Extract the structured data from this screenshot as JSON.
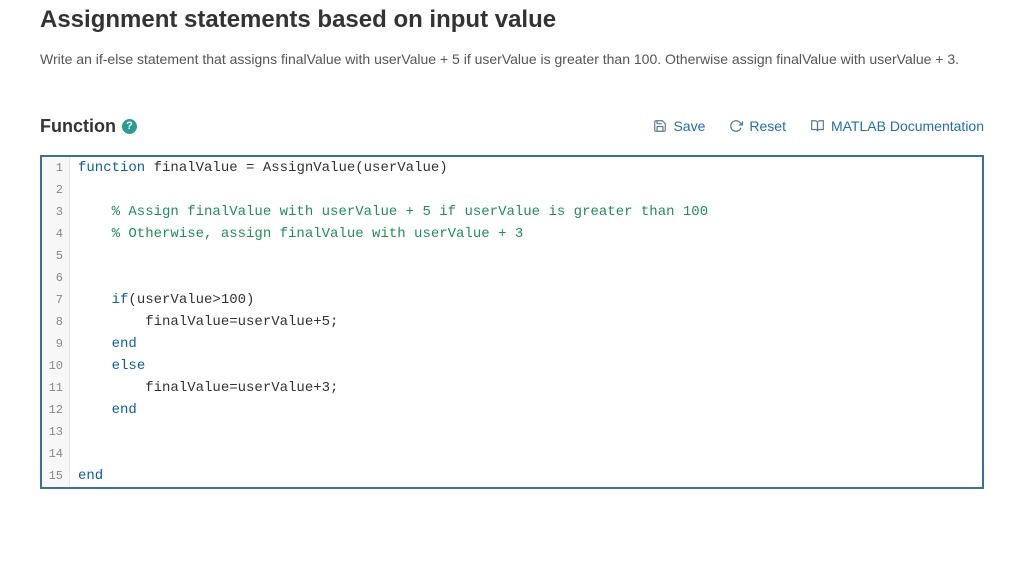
{
  "title": "Assignment statements based on input value",
  "instructions": "Write an if-else statement that assigns finalValue with userValue + 5 if userValue is greater than 100. Otherwise assign finalValue with userValue + 3.",
  "section_label": "Function",
  "help_glyph": "?",
  "toolbar": {
    "save": "Save",
    "reset": "Reset",
    "docs": "MATLAB Documentation"
  },
  "editor": {
    "border_color": "#3b6ea5",
    "gutter_bg": "#f7f7f7",
    "gutter_color": "#888888",
    "keyword_color": "#0b5fa5",
    "comment_color": "#1e8f5a",
    "text_color": "#333333",
    "lines": [
      {
        "n": 1,
        "segments": [
          {
            "t": "function ",
            "c": "kw"
          },
          {
            "t": "finalValue = AssignValue(userValue)",
            "c": "txt"
          }
        ]
      },
      {
        "n": 2,
        "segments": []
      },
      {
        "n": 3,
        "segments": [
          {
            "t": "    % Assign finalValue with userValue + 5 if userValue is greater than 100",
            "c": "cm"
          }
        ]
      },
      {
        "n": 4,
        "segments": [
          {
            "t": "    % Otherwise, assign finalValue with userValue + 3",
            "c": "cm"
          }
        ]
      },
      {
        "n": 5,
        "segments": []
      },
      {
        "n": 6,
        "segments": []
      },
      {
        "n": 7,
        "segments": [
          {
            "t": "    ",
            "c": "txt"
          },
          {
            "t": "if",
            "c": "kw"
          },
          {
            "t": "(userValue>100)",
            "c": "txt"
          }
        ]
      },
      {
        "n": 8,
        "segments": [
          {
            "t": "        finalValue=userValue+5;",
            "c": "txt"
          }
        ]
      },
      {
        "n": 9,
        "segments": [
          {
            "t": "    ",
            "c": "txt"
          },
          {
            "t": "end",
            "c": "kw"
          }
        ]
      },
      {
        "n": 10,
        "segments": [
          {
            "t": "    ",
            "c": "txt"
          },
          {
            "t": "else",
            "c": "kw"
          }
        ]
      },
      {
        "n": 11,
        "segments": [
          {
            "t": "        finalValue=userValue+3;",
            "c": "txt"
          }
        ]
      },
      {
        "n": 12,
        "segments": [
          {
            "t": "    ",
            "c": "txt"
          },
          {
            "t": "end",
            "c": "kw"
          }
        ]
      },
      {
        "n": 13,
        "segments": []
      },
      {
        "n": 14,
        "segments": []
      },
      {
        "n": 15,
        "segments": [
          {
            "t": "end",
            "c": "kw"
          }
        ]
      }
    ]
  }
}
